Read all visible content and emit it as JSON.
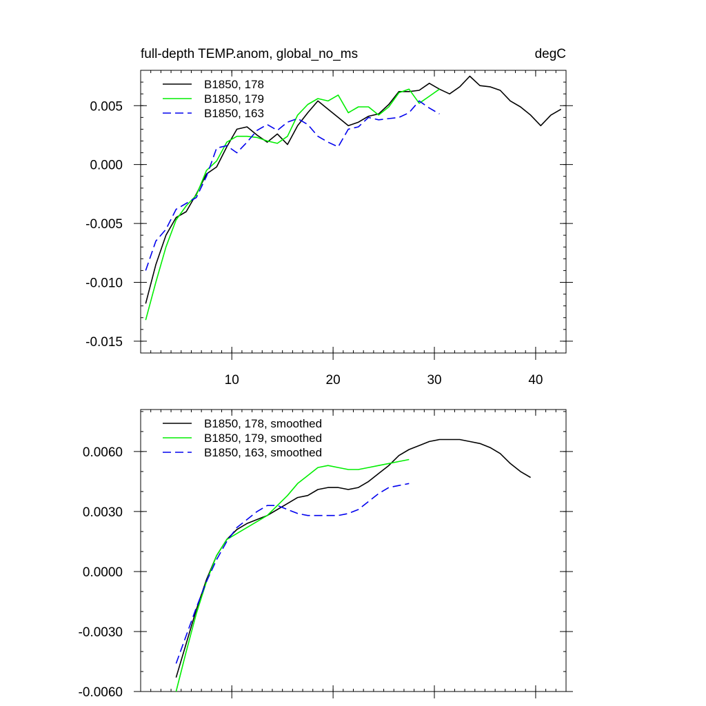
{
  "chart_data": [
    {
      "type": "line",
      "title_left": "full-depth TEMP.anom, global_no_ms",
      "title_right": "degC",
      "xlim": [
        1,
        43
      ],
      "ylim": [
        -0.016,
        0.008
      ],
      "x_ticks": [
        10,
        20,
        30,
        40
      ],
      "x_tick_labels": [
        "10",
        "20",
        "30",
        "40"
      ],
      "y_ticks": [
        -0.015,
        -0.01,
        -0.005,
        0.0,
        0.005
      ],
      "y_tick_labels": [
        "-0.015",
        "-0.010",
        "-0.005",
        "0.000",
        "0.005"
      ],
      "legend_position": "top-left",
      "series": [
        {
          "name": "B1850, 178",
          "color": "#000000",
          "dash": "solid",
          "x": [
            1.5,
            2.5,
            3.5,
            4.5,
            5.5,
            6.5,
            7.5,
            8.5,
            9.5,
            10.5,
            11.5,
            12.5,
            13.5,
            14.5,
            15.5,
            16.5,
            17.5,
            18.5,
            19.5,
            20.5,
            21.5,
            22.5,
            23.5,
            24.5,
            25.5,
            26.5,
            27.5,
            28.5,
            29.5,
            30.5,
            31.5,
            32.5,
            33.5,
            34.5,
            35.5,
            36.5,
            37.5,
            38.5,
            39.5,
            40.5,
            41.5,
            42.5
          ],
          "values": [
            -0.0118,
            -0.0085,
            -0.006,
            -0.0045,
            -0.004,
            -0.0025,
            -0.0008,
            -0.0002,
            0.0015,
            0.003,
            0.0032,
            0.0025,
            0.0019,
            0.0026,
            0.0017,
            0.0033,
            0.0044,
            0.0054,
            0.0047,
            0.004,
            0.0033,
            0.0036,
            0.0041,
            0.0043,
            0.0051,
            0.0062,
            0.0062,
            0.0063,
            0.0069,
            0.0064,
            0.006,
            0.0066,
            0.0075,
            0.0067,
            0.0066,
            0.0063,
            0.0054,
            0.0049,
            0.0042,
            0.0033,
            0.0042,
            0.0047
          ]
        },
        {
          "name": "B1850, 179",
          "color": "#00ee00",
          "dash": "solid",
          "x": [
            1.5,
            2.5,
            3.5,
            4.5,
            5.5,
            6.5,
            7.5,
            8.5,
            9.5,
            10.5,
            11.5,
            12.5,
            13.5,
            14.5,
            15.5,
            16.5,
            17.5,
            18.5,
            19.5,
            20.5,
            21.5,
            22.5,
            23.5,
            24.5,
            25.5,
            26.5,
            27.5,
            28.5,
            29.5,
            30.5
          ],
          "values": [
            -0.0132,
            -0.01,
            -0.007,
            -0.0047,
            -0.0035,
            -0.0026,
            -0.0005,
            0.0003,
            0.0019,
            0.0024,
            0.0024,
            0.0023,
            0.002,
            0.0018,
            0.0024,
            0.0042,
            0.0051,
            0.0056,
            0.0054,
            0.0059,
            0.0044,
            0.0049,
            0.0049,
            0.0042,
            0.0049,
            0.0061,
            0.0064,
            0.0052,
            0.0058,
            0.0064
          ]
        },
        {
          "name": "B1850, 163",
          "color": "#0000ee",
          "dash": "dashed",
          "x": [
            1.5,
            2.5,
            3.5,
            4.5,
            5.5,
            6.5,
            7.5,
            8.5,
            9.5,
            10.5,
            11.5,
            12.5,
            13.5,
            14.5,
            15.5,
            16.5,
            17.5,
            18.5,
            19.5,
            20.5,
            21.5,
            22.5,
            23.5,
            24.5,
            25.5,
            26.5,
            27.5,
            28.5,
            29.5,
            30.5
          ],
          "values": [
            -0.009,
            -0.0065,
            -0.0055,
            -0.0038,
            -0.0033,
            -0.0028,
            -0.001,
            0.0014,
            0.0016,
            0.001,
            0.0019,
            0.0029,
            0.0034,
            0.0029,
            0.0036,
            0.0039,
            0.0034,
            0.0024,
            0.0019,
            0.0015,
            0.003,
            0.0032,
            0.004,
            0.0038,
            0.0039,
            0.004,
            0.0044,
            0.0054,
            0.0048,
            0.0043
          ]
        }
      ]
    },
    {
      "type": "line",
      "xlim": [
        1,
        43
      ],
      "ylim": [
        -0.006,
        0.0081
      ],
      "x_ticks": [
        10,
        20,
        30,
        40
      ],
      "x_tick_labels": [],
      "y_ticks": [
        -0.006,
        -0.003,
        0.0,
        0.003,
        0.006
      ],
      "y_tick_labels": [
        "-0.0060",
        "-0.0030",
        "0.0000",
        "0.0030",
        "0.0060"
      ],
      "legend_position": "top-left",
      "series": [
        {
          "name": "B1850, 178, smoothed",
          "color": "#000000",
          "dash": "solid",
          "x": [
            4.5,
            5.5,
            6.5,
            7.5,
            8.5,
            9.5,
            10.5,
            11.5,
            12.5,
            13.5,
            14.5,
            15.5,
            16.5,
            17.5,
            18.5,
            19.5,
            20.5,
            21.5,
            22.5,
            23.5,
            24.5,
            25.5,
            26.5,
            27.5,
            28.5,
            29.5,
            30.5,
            31.5,
            32.5,
            33.5,
            34.5,
            35.5,
            36.5,
            37.5,
            38.5,
            39.5
          ],
          "values": [
            -0.0053,
            -0.0036,
            -0.0019,
            -0.0004,
            0.0008,
            0.0016,
            0.0021,
            0.0024,
            0.0026,
            0.0028,
            0.0031,
            0.0034,
            0.0037,
            0.0038,
            0.0041,
            0.0042,
            0.0042,
            0.0041,
            0.0042,
            0.0045,
            0.0049,
            0.0053,
            0.0058,
            0.0061,
            0.0063,
            0.0065,
            0.0066,
            0.0066,
            0.0066,
            0.0065,
            0.0064,
            0.0062,
            0.0059,
            0.0054,
            0.005,
            0.0047
          ]
        },
        {
          "name": "B1850, 179, smoothed",
          "color": "#00ee00",
          "dash": "solid",
          "x": [
            4.5,
            5.5,
            6.5,
            7.5,
            8.5,
            9.5,
            10.5,
            11.5,
            12.5,
            13.5,
            14.5,
            15.5,
            16.5,
            17.5,
            18.5,
            19.5,
            20.5,
            21.5,
            22.5,
            23.5,
            24.5,
            25.5,
            26.5,
            27.5
          ],
          "values": [
            -0.006,
            -0.004,
            -0.0021,
            -0.0005,
            0.0008,
            0.0016,
            0.0019,
            0.0022,
            0.0025,
            0.0028,
            0.0033,
            0.0038,
            0.0044,
            0.0048,
            0.0052,
            0.0053,
            0.0052,
            0.0051,
            0.0051,
            0.0052,
            0.0053,
            0.0054,
            0.0055,
            0.0056
          ]
        },
        {
          "name": "B1850, 163, smoothed",
          "color": "#0000ee",
          "dash": "dashed",
          "x": [
            4.5,
            5.5,
            6.5,
            7.5,
            8.5,
            9.5,
            10.5,
            11.5,
            12.5,
            13.5,
            14.5,
            15.5,
            16.5,
            17.5,
            18.5,
            19.5,
            20.5,
            21.5,
            22.5,
            23.5,
            24.5,
            25.5,
            26.5,
            27.5
          ],
          "values": [
            -0.0046,
            -0.0032,
            -0.0018,
            -0.0005,
            0.0006,
            0.0015,
            0.0022,
            0.0026,
            0.003,
            0.0033,
            0.0033,
            0.0031,
            0.0029,
            0.0028,
            0.0028,
            0.0028,
            0.0028,
            0.0029,
            0.0031,
            0.0035,
            0.0039,
            0.0042,
            0.0043,
            0.0044
          ]
        }
      ]
    }
  ]
}
